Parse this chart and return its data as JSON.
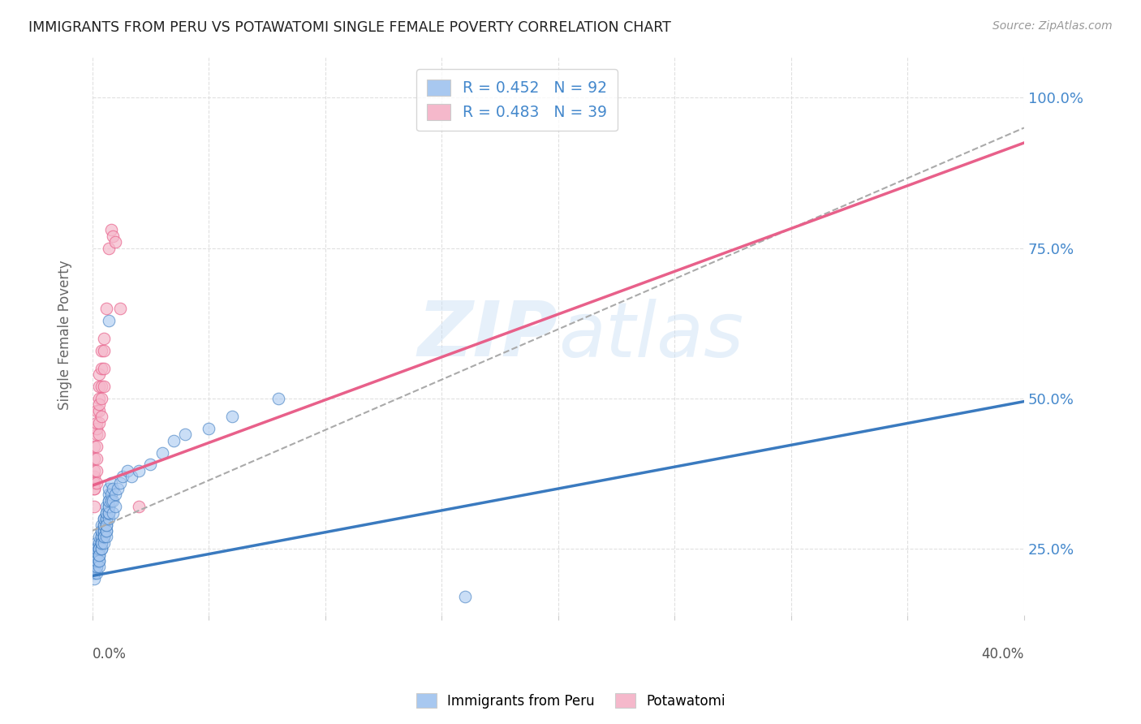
{
  "title": "IMMIGRANTS FROM PERU VS POTAWATOMI SINGLE FEMALE POVERTY CORRELATION CHART",
  "source": "Source: ZipAtlas.com",
  "ylabel": "Single Female Poverty",
  "yticks": [
    "25.0%",
    "50.0%",
    "75.0%",
    "100.0%"
  ],
  "ytick_vals": [
    0.25,
    0.5,
    0.75,
    1.0
  ],
  "xlim": [
    0.0,
    0.4
  ],
  "ylim": [
    0.14,
    1.07
  ],
  "legend_label1": "Immigrants from Peru",
  "legend_label2": "Potawatomi",
  "watermark": "ZIPatlas",
  "blue_color": "#a8c8f0",
  "pink_color": "#f5b8cb",
  "blue_line_color": "#3a7abf",
  "pink_line_color": "#e8608a",
  "title_color": "#333333",
  "right_tick_color": "#4488cc",
  "legend_R1": "R = 0.452",
  "legend_N1": "N = 92",
  "legend_R2": "R = 0.483",
  "legend_N2": "N = 39",
  "blue_line_x0": 0.0,
  "blue_line_y0": 0.205,
  "blue_line_x1": 0.4,
  "blue_line_y1": 0.495,
  "pink_line_x0": 0.0,
  "pink_line_y0": 0.355,
  "pink_line_x1": 0.4,
  "pink_line_y1": 0.925,
  "gray_line_x0": 0.0,
  "gray_line_y0": 0.28,
  "gray_line_x1": 0.4,
  "gray_line_y1": 0.95,
  "peru_x": [
    0.001,
    0.001,
    0.001,
    0.001,
    0.001,
    0.001,
    0.001,
    0.001,
    0.001,
    0.001,
    0.002,
    0.002,
    0.002,
    0.002,
    0.002,
    0.002,
    0.002,
    0.002,
    0.002,
    0.002,
    0.003,
    0.003,
    0.003,
    0.003,
    0.003,
    0.003,
    0.003,
    0.003,
    0.003,
    0.003,
    0.004,
    0.004,
    0.004,
    0.004,
    0.004,
    0.004,
    0.004,
    0.004,
    0.004,
    0.004,
    0.005,
    0.005,
    0.005,
    0.005,
    0.005,
    0.005,
    0.005,
    0.005,
    0.005,
    0.005,
    0.006,
    0.006,
    0.006,
    0.006,
    0.006,
    0.006,
    0.006,
    0.006,
    0.006,
    0.006,
    0.007,
    0.007,
    0.007,
    0.007,
    0.007,
    0.007,
    0.007,
    0.007,
    0.007,
    0.007,
    0.008,
    0.008,
    0.008,
    0.009,
    0.009,
    0.009,
    0.01,
    0.01,
    0.011,
    0.012,
    0.013,
    0.015,
    0.017,
    0.02,
    0.025,
    0.03,
    0.035,
    0.04,
    0.05,
    0.06,
    0.08,
    0.16
  ],
  "peru_y": [
    0.22,
    0.23,
    0.21,
    0.24,
    0.22,
    0.25,
    0.21,
    0.23,
    0.2,
    0.22,
    0.24,
    0.22,
    0.25,
    0.23,
    0.21,
    0.26,
    0.24,
    0.22,
    0.25,
    0.23,
    0.25,
    0.23,
    0.22,
    0.26,
    0.24,
    0.25,
    0.23,
    0.27,
    0.25,
    0.24,
    0.26,
    0.27,
    0.25,
    0.28,
    0.26,
    0.29,
    0.27,
    0.25,
    0.26,
    0.28,
    0.27,
    0.28,
    0.29,
    0.27,
    0.3,
    0.28,
    0.26,
    0.29,
    0.27,
    0.3,
    0.28,
    0.3,
    0.31,
    0.29,
    0.27,
    0.3,
    0.28,
    0.32,
    0.29,
    0.31,
    0.3,
    0.32,
    0.31,
    0.63,
    0.33,
    0.31,
    0.32,
    0.34,
    0.33,
    0.35,
    0.34,
    0.36,
    0.33,
    0.35,
    0.33,
    0.31,
    0.34,
    0.32,
    0.35,
    0.36,
    0.37,
    0.38,
    0.37,
    0.38,
    0.39,
    0.41,
    0.43,
    0.44,
    0.45,
    0.47,
    0.5,
    0.17
  ],
  "pota_x": [
    0.001,
    0.001,
    0.001,
    0.001,
    0.001,
    0.001,
    0.001,
    0.001,
    0.002,
    0.002,
    0.002,
    0.002,
    0.002,
    0.002,
    0.002,
    0.002,
    0.003,
    0.003,
    0.003,
    0.003,
    0.003,
    0.003,
    0.003,
    0.004,
    0.004,
    0.004,
    0.004,
    0.004,
    0.005,
    0.005,
    0.005,
    0.005,
    0.006,
    0.007,
    0.008,
    0.009,
    0.01,
    0.012,
    0.02
  ],
  "pota_y": [
    0.35,
    0.37,
    0.4,
    0.42,
    0.38,
    0.36,
    0.32,
    0.35,
    0.42,
    0.44,
    0.38,
    0.4,
    0.36,
    0.45,
    0.48,
    0.46,
    0.44,
    0.48,
    0.5,
    0.52,
    0.54,
    0.46,
    0.49,
    0.52,
    0.55,
    0.58,
    0.5,
    0.47,
    0.6,
    0.55,
    0.52,
    0.58,
    0.65,
    0.75,
    0.78,
    0.77,
    0.76,
    0.65,
    0.32
  ]
}
